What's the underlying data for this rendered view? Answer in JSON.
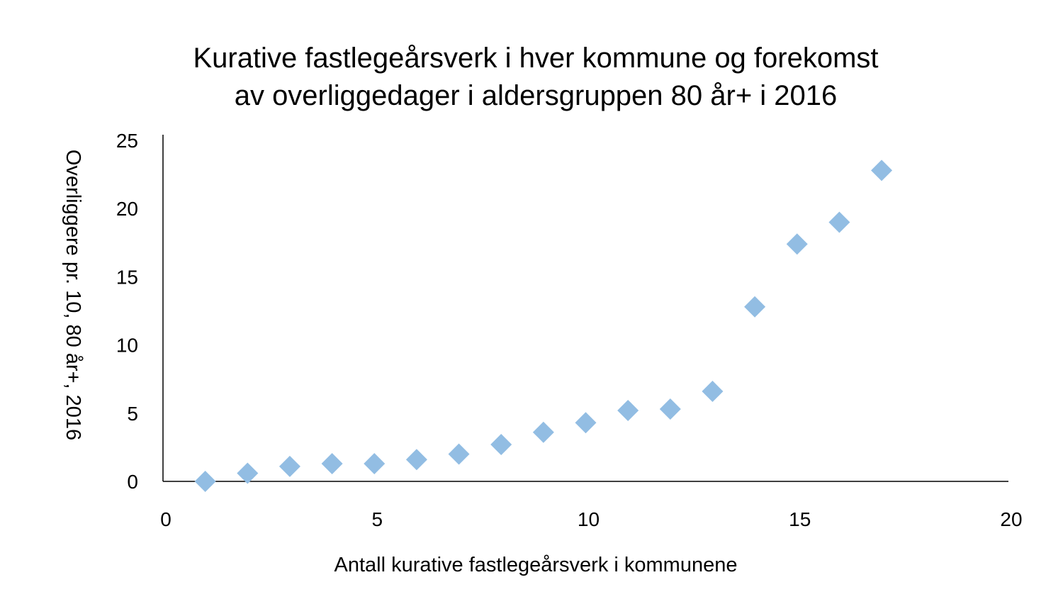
{
  "chart_data": {
    "type": "scatter",
    "title_lines": [
      "Kurative fastlegeårsverk i hver kommune og forekomst",
      "av overliggedager i aldersgruppen 80 år+ i 2016"
    ],
    "xlabel": "Antall kurative fastlegeårsverk i kommunene",
    "ylabel": "Overliggere pr. 10, 80 år+, 2016",
    "xlim": [
      0,
      20
    ],
    "ylim": [
      0,
      25
    ],
    "x_ticks": [
      "0",
      "5",
      "10",
      "15",
      "20"
    ],
    "y_ticks": [
      "0",
      "5",
      "10",
      "15",
      "20",
      "25"
    ],
    "grid": false,
    "marker": "diamond",
    "color": "#92BDE3",
    "points": [
      {
        "x": 1,
        "y": 0.0
      },
      {
        "x": 2,
        "y": 0.6
      },
      {
        "x": 3,
        "y": 1.1
      },
      {
        "x": 4,
        "y": 1.3
      },
      {
        "x": 5,
        "y": 1.3
      },
      {
        "x": 6,
        "y": 1.6
      },
      {
        "x": 7,
        "y": 2.0
      },
      {
        "x": 8,
        "y": 2.7
      },
      {
        "x": 9,
        "y": 3.6
      },
      {
        "x": 10,
        "y": 4.3
      },
      {
        "x": 11,
        "y": 5.2
      },
      {
        "x": 12,
        "y": 5.3
      },
      {
        "x": 13,
        "y": 6.6
      },
      {
        "x": 14,
        "y": 12.8
      },
      {
        "x": 15,
        "y": 17.4
      },
      {
        "x": 16,
        "y": 19.0
      },
      {
        "x": 17,
        "y": 22.8
      }
    ]
  }
}
